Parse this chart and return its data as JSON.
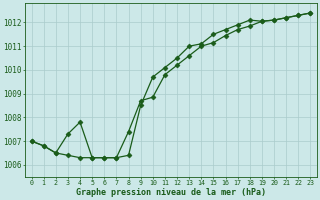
{
  "xlabel": "Graphe pression niveau de la mer (hPa)",
  "background_color": "#cce8e8",
  "grid_color": "#aacccc",
  "line_color": "#1a5c1a",
  "x_ticks": [
    0,
    1,
    2,
    3,
    4,
    5,
    6,
    7,
    8,
    9,
    10,
    11,
    12,
    13,
    14,
    15,
    16,
    17,
    18,
    19,
    20,
    21,
    22,
    23
  ],
  "ylim": [
    1005.5,
    1012.8
  ],
  "yticks": [
    1006,
    1007,
    1008,
    1009,
    1010,
    1011,
    1012
  ],
  "series1": {
    "x": [
      0,
      1,
      2,
      3,
      4,
      5,
      6,
      7,
      8,
      9,
      10,
      11,
      12,
      13,
      14,
      15,
      16,
      17,
      18,
      19,
      20,
      21,
      22,
      23
    ],
    "y": [
      1007.0,
      1006.8,
      1006.5,
      1007.3,
      1007.8,
      1006.3,
      1006.3,
      1006.3,
      1006.4,
      1008.5,
      1009.7,
      1010.1,
      1010.5,
      1011.0,
      1011.1,
      1011.5,
      1011.7,
      1011.9,
      1012.1,
      1012.05,
      1012.1,
      1012.2,
      1012.3,
      1012.4
    ]
  },
  "series2": {
    "x": [
      0,
      1,
      2,
      3,
      4,
      5,
      6,
      7,
      8,
      9,
      10,
      11,
      12,
      13,
      14,
      15,
      16,
      17,
      18,
      19,
      20,
      21,
      22,
      23
    ],
    "y": [
      1007.0,
      1006.8,
      1006.5,
      1006.4,
      1006.3,
      1006.3,
      1006.3,
      1006.3,
      1007.4,
      1008.7,
      1008.85,
      1009.8,
      1010.2,
      1010.6,
      1011.0,
      1011.15,
      1011.45,
      1011.7,
      1011.85,
      1012.05,
      1012.1,
      1012.2,
      1012.3,
      1012.4
    ]
  }
}
